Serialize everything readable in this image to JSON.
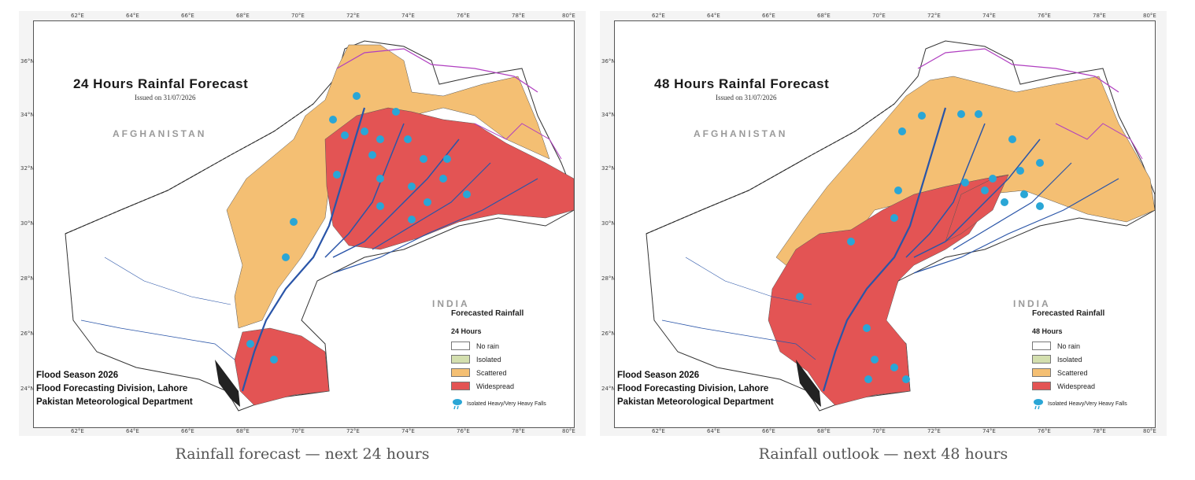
{
  "panels": [
    {
      "title": "24 Hours Rainfal Forecast",
      "issued": "Issued on 31/07/2026",
      "country_afghanistan": "AFGHANISTAN",
      "country_india": "INDIA",
      "legend": {
        "title": "Forecasted Rainfall",
        "period": "24 Hours",
        "items": [
          {
            "label": "No rain",
            "color": "#ffffff"
          },
          {
            "label": "Isolated",
            "color": "#d3dfae"
          },
          {
            "label": "Scattered",
            "color": "#f4bf73"
          },
          {
            "label": "Widespread",
            "color": "#e35454"
          }
        ],
        "heavy_falls": "Isolated Heavy/Very Heavy Falls",
        "heavy_icon": "rain-cloud-icon"
      },
      "credits": [
        "Flood Season 2026",
        "Flood Forecasting Division, Lahore",
        "Pakistan Meteorological Department"
      ],
      "caption": "Rainfall forecast — next 24 hours"
    },
    {
      "title": "48 Hours Rainfal Forecast",
      "issued": "Issued on 31/07/2026",
      "country_afghanistan": "AFGHANISTAN",
      "country_india": "INDIA",
      "legend": {
        "title": "Forecasted Rainfall",
        "period": "48 Hours",
        "items": [
          {
            "label": "No rain",
            "color": "#ffffff"
          },
          {
            "label": "Isolated",
            "color": "#d3dfae"
          },
          {
            "label": "Scattered",
            "color": "#f4bf73"
          },
          {
            "label": "Widespread",
            "color": "#e35454"
          }
        ],
        "heavy_falls": "Isolated Heavy/Very Heavy Falls",
        "heavy_icon": "rain-cloud-icon"
      },
      "credits": [
        "Flood Season 2026",
        "Flood Forecasting Division, Lahore",
        "Pakistan Meteorological Department"
      ],
      "caption": "Rainfall outlook — next 48 hours"
    }
  ],
  "axis": {
    "lon_ticks": [
      "62°E",
      "64°E",
      "66°E",
      "68°E",
      "70°E",
      "72°E",
      "74°E",
      "76°E",
      "78°E",
      "80°E"
    ],
    "lat_ticks": [
      "36°N",
      "34°N",
      "32°N",
      "30°N",
      "28°N",
      "26°N",
      "24°N"
    ]
  },
  "colors": {
    "scattered": "#f4bf73",
    "widespread": "#e35454",
    "river": "#2a55a8",
    "boundary": "#b03fc0",
    "rain_icon": "#2aa6d6"
  }
}
